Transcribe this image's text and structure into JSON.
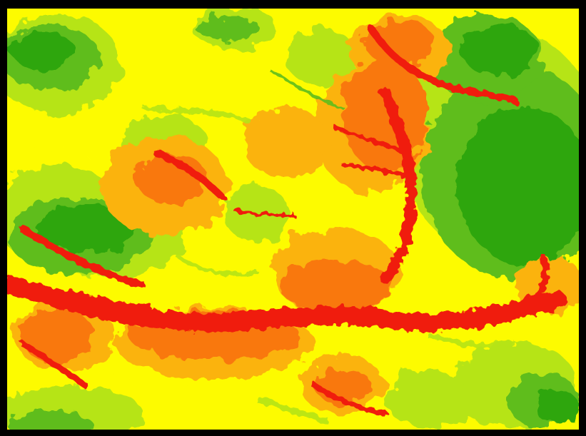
{
  "map": {
    "type": "raster-slope-classification",
    "frame_color": "#000000",
    "palette": {
      "flat_dark": "#2ea60a",
      "flat": "#5ebd1c",
      "gentle": "#b6e414",
      "moderate": "#fdfb00",
      "steep": "#fbb30b",
      "steeper": "#f97810",
      "steepest": "#f01d0c"
    },
    "legend_visible": false,
    "labels_visible": false
  }
}
